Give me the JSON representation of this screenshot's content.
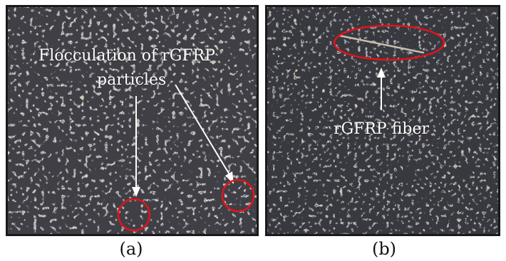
{
  "figure": {
    "panel_a": {
      "caption": "(a)",
      "annotation_line1": "Flocculation of rGFRP",
      "annotation_line2": "particles",
      "marker_color": "#e0141c"
    },
    "panel_b": {
      "caption": "(b)",
      "annotation": "rGFRP fiber",
      "marker_color": "#e0141c"
    }
  }
}
